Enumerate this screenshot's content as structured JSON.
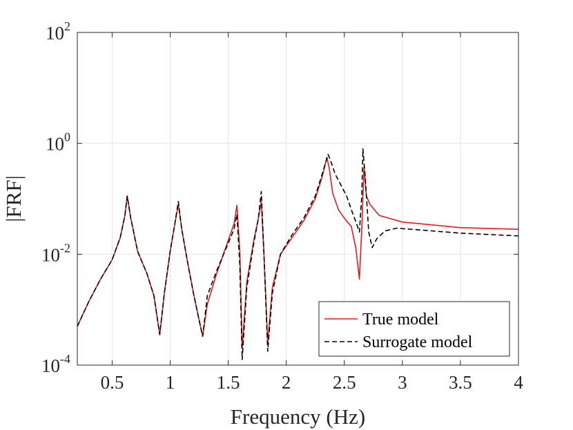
{
  "chart_data": {
    "type": "line",
    "xlabel": "Frequency (Hz)",
    "ylabel": "|FRF|",
    "xlim": [
      0.2,
      4
    ],
    "ylim_log10": [
      -4,
      2
    ],
    "yscale": "log",
    "grid": true,
    "legend_position": "bottom-right",
    "x_ticks": [
      0.5,
      1,
      1.5,
      2,
      2.5,
      3,
      3.5,
      4
    ],
    "x_tick_labels": [
      "0.5",
      "1",
      "1.5",
      "2",
      "2.5",
      "3",
      "3.5",
      "4"
    ],
    "y_ticks_log10": [
      -4,
      -2,
      0,
      2
    ],
    "y_tick_base": "10",
    "y_tick_exponents": [
      "-4",
      "-2",
      "0",
      "2"
    ],
    "series": [
      {
        "name": "True model",
        "color": "#e31a1c",
        "dash": "solid",
        "x": [
          0.2,
          0.3,
          0.4,
          0.5,
          0.57,
          0.61,
          0.63,
          0.66,
          0.72,
          0.8,
          0.86,
          0.91,
          0.95,
          1.0,
          1.04,
          1.07,
          1.1,
          1.15,
          1.2,
          1.25,
          1.28,
          1.32,
          1.4,
          1.5,
          1.55,
          1.575,
          1.6,
          1.62,
          1.66,
          1.72,
          1.76,
          1.785,
          1.81,
          1.84,
          1.88,
          1.95,
          2.05,
          2.15,
          2.25,
          2.31,
          2.35,
          2.37,
          2.4,
          2.45,
          2.5,
          2.56,
          2.6,
          2.63,
          2.65,
          2.67,
          2.69,
          2.72,
          2.8,
          3.0,
          3.5,
          4.0
        ],
        "log10y": [
          -3.3,
          -2.85,
          -2.45,
          -2.1,
          -1.7,
          -1.3,
          -0.95,
          -1.35,
          -1.95,
          -2.35,
          -2.75,
          -3.45,
          -2.7,
          -1.95,
          -1.45,
          -1.1,
          -1.55,
          -2.15,
          -2.7,
          -3.2,
          -3.48,
          -2.9,
          -2.35,
          -1.75,
          -1.45,
          -1.12,
          -1.95,
          -3.7,
          -2.5,
          -1.75,
          -1.35,
          -1.05,
          -2.1,
          -3.6,
          -2.6,
          -2.0,
          -1.7,
          -1.4,
          -1.0,
          -0.6,
          -0.25,
          -0.45,
          -0.9,
          -1.2,
          -1.35,
          -1.5,
          -1.9,
          -2.45,
          -1.55,
          -0.42,
          -0.95,
          -1.1,
          -1.3,
          -1.42,
          -1.52,
          -1.55
        ]
      },
      {
        "name": "Surrogate model",
        "color": "#000000",
        "dash": "dashed",
        "x": [
          0.2,
          0.3,
          0.4,
          0.5,
          0.57,
          0.61,
          0.63,
          0.66,
          0.72,
          0.8,
          0.86,
          0.91,
          0.95,
          1.0,
          1.04,
          1.07,
          1.1,
          1.15,
          1.2,
          1.25,
          1.28,
          1.32,
          1.4,
          1.5,
          1.55,
          1.575,
          1.6,
          1.62,
          1.66,
          1.72,
          1.76,
          1.785,
          1.81,
          1.84,
          1.88,
          1.95,
          2.05,
          2.15,
          2.25,
          2.31,
          2.36,
          2.38,
          2.42,
          2.47,
          2.52,
          2.57,
          2.6,
          2.63,
          2.65,
          2.66,
          2.68,
          2.71,
          2.74,
          2.78,
          2.85,
          2.95,
          3.2,
          3.5,
          4.0
        ],
        "log10y": [
          -3.3,
          -2.85,
          -2.45,
          -2.1,
          -1.7,
          -1.3,
          -0.95,
          -1.35,
          -1.95,
          -2.35,
          -2.75,
          -3.45,
          -2.7,
          -1.95,
          -1.45,
          -1.05,
          -1.55,
          -2.15,
          -2.7,
          -3.2,
          -3.48,
          -2.75,
          -2.3,
          -1.8,
          -1.55,
          -1.28,
          -2.2,
          -3.9,
          -2.6,
          -1.8,
          -1.35,
          -0.87,
          -2.1,
          -3.75,
          -2.7,
          -2.0,
          -1.65,
          -1.35,
          -0.95,
          -0.55,
          -0.2,
          -0.3,
          -0.55,
          -0.75,
          -0.95,
          -1.25,
          -1.42,
          -1.6,
          -0.95,
          -0.1,
          -0.6,
          -1.6,
          -1.88,
          -1.72,
          -1.58,
          -1.53,
          -1.57,
          -1.62,
          -1.67
        ]
      }
    ]
  }
}
